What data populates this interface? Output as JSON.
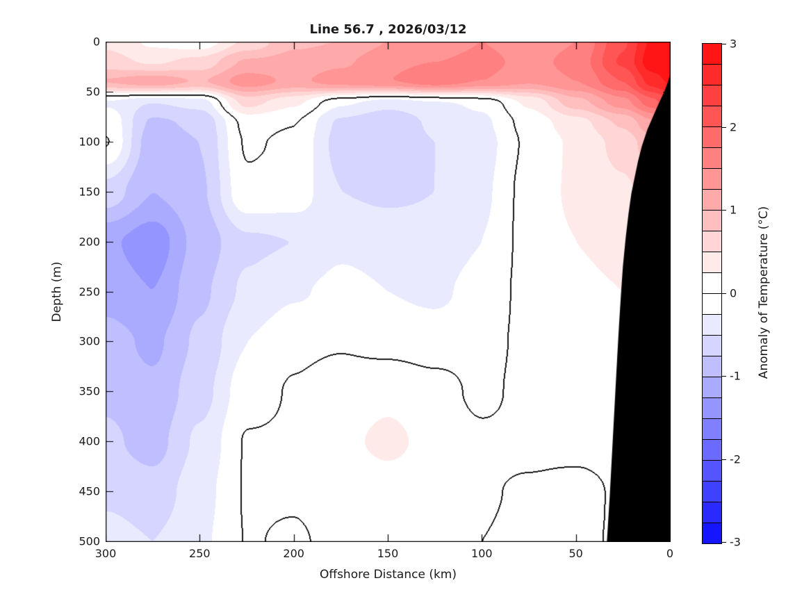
{
  "figure": {
    "title": "Line 56.7 , 2026/03/12",
    "background_color": "#ffffff"
  },
  "axes": {
    "xlabel": "Offshore Distance (km)",
    "ylabel": "Depth (m)",
    "x_ticks": [
      300,
      250,
      200,
      150,
      100,
      50,
      0
    ],
    "y_ticks": [
      0,
      50,
      100,
      150,
      200,
      250,
      300,
      350,
      400,
      450,
      500
    ],
    "x_range": [
      300,
      0
    ],
    "y_range": [
      0,
      500
    ],
    "x_axis_reversed": true,
    "box_on": true,
    "tick_direction": "in",
    "axis_color": "#000000"
  },
  "colorbar": {
    "label": "Anomaly of Temperature (°C)",
    "tick_values": [
      3,
      2,
      1,
      0,
      -1,
      -2,
      -3
    ],
    "tick_labels": [
      "3",
      "2",
      "1",
      "0",
      "-1",
      "-2",
      "-3"
    ],
    "min": -3,
    "max": 3,
    "segment_step": 0.25,
    "num_segments": 24,
    "positive_end_color": "#ff0000",
    "negative_end_color": "#0000ff",
    "zero_color": "#ffffff",
    "edge_color": "#000000"
  },
  "chart_data": {
    "type": "filled_contour",
    "title": "Line 56.7 , 2026/03/12",
    "xlabel": "Offshore Distance (km)",
    "ylabel": "Depth (m)",
    "zlabel": "Anomaly of Temperature (°C)",
    "contour_interval": 0.25,
    "zlim": [
      -3,
      3
    ],
    "zero_contour_color": "#000000",
    "colormap": "blue-white-red",
    "x_km": [
      300,
      275,
      250,
      225,
      200,
      175,
      150,
      125,
      100,
      75,
      50,
      25,
      10,
      0
    ],
    "depth_m": [
      0,
      20,
      40,
      60,
      80,
      100,
      150,
      200,
      250,
      300,
      350,
      400,
      450,
      500
    ],
    "anomaly_grid": [
      [
        0.45,
        0.2,
        0.08,
        0.55,
        0.95,
        1.0,
        1.25,
        1.3,
        1.5,
        1.3,
        1.5,
        2.2,
        2.8,
        3.0
      ],
      [
        0.6,
        0.45,
        0.6,
        1.05,
        1.1,
        1.2,
        1.45,
        1.5,
        1.6,
        1.4,
        1.6,
        2.3,
        2.9,
        3.0
      ],
      [
        1.05,
        1.2,
        1.0,
        1.4,
        1.2,
        1.4,
        1.5,
        1.7,
        1.5,
        1.3,
        1.5,
        2.0,
        2.6,
        2.8
      ],
      [
        -0.3,
        -0.5,
        -0.4,
        0.6,
        0.3,
        -0.2,
        -0.4,
        -0.3,
        -0.2,
        0.3,
        0.9,
        1.4,
        1.9,
        2.2
      ],
      [
        -0.05,
        -0.8,
        -0.7,
        0.08,
        0.01,
        -0.55,
        -0.7,
        -0.45,
        -0.3,
        0.1,
        0.4,
        0.8,
        1.2,
        1.5
      ],
      [
        0.02,
        -0.9,
        -0.75,
        0.03,
        -0.05,
        -0.6,
        -0.7,
        -0.5,
        -0.35,
        0.05,
        0.3,
        0.6,
        0.9,
        1.1
      ],
      [
        -0.6,
        -1.0,
        -0.8,
        -0.05,
        -0.1,
        -0.5,
        -0.55,
        -0.5,
        -0.3,
        0.1,
        0.3,
        0.45,
        0.6,
        0.7
      ],
      [
        -1.2,
        -1.4,
        -0.9,
        -0.55,
        -0.5,
        -0.3,
        -0.35,
        -0.4,
        -0.25,
        0.1,
        0.25,
        0.35,
        0.45,
        0.5
      ],
      [
        -1.1,
        -1.25,
        -0.8,
        -0.45,
        -0.28,
        -0.18,
        -0.25,
        -0.3,
        -0.15,
        0.08,
        0.18,
        0.25,
        0.3,
        0.35
      ],
      [
        -0.9,
        -1.05,
        -0.7,
        -0.25,
        -0.05,
        -0.02,
        -0.08,
        -0.12,
        -0.08,
        0.06,
        0.15,
        0.2,
        0.25,
        0.3
      ],
      [
        -0.8,
        -0.95,
        -0.6,
        -0.1,
        0.02,
        0.12,
        0.2,
        0.1,
        -0.06,
        0.08,
        0.12,
        0.15,
        0.18,
        0.2
      ],
      [
        -0.7,
        -0.85,
        -0.45,
        0.02,
        0.03,
        0.2,
        0.3,
        0.18,
        0.05,
        0.06,
        0.08,
        0.1,
        0.12,
        0.15
      ],
      [
        -0.55,
        -0.65,
        -0.35,
        0.02,
        0.02,
        0.1,
        0.15,
        0.1,
        0.02,
        -0.03,
        -0.08,
        0.04,
        0.06,
        0.08
      ],
      [
        -0.4,
        -0.5,
        -0.3,
        0.01,
        -0.02,
        0.05,
        0.1,
        0.05,
        0.0,
        -0.05,
        -0.03,
        0.02,
        0.03,
        0.04
      ]
    ],
    "bathymetry_mask": {
      "color": "#000000",
      "side": "right",
      "profile_km_depth": [
        [
          0,
          33
        ],
        [
          1,
          40
        ],
        [
          3,
          50
        ],
        [
          6,
          62
        ],
        [
          9,
          75
        ],
        [
          12,
          88
        ],
        [
          15,
          105
        ],
        [
          17,
          120
        ],
        [
          19,
          138
        ],
        [
          20.5,
          152
        ],
        [
          22,
          172
        ],
        [
          23.5,
          196
        ],
        [
          25,
          225
        ],
        [
          26,
          252
        ],
        [
          27,
          282
        ],
        [
          28,
          315
        ],
        [
          29,
          350
        ],
        [
          30,
          385
        ],
        [
          31,
          420
        ],
        [
          32,
          455
        ],
        [
          33,
          485
        ],
        [
          33.5,
          500
        ]
      ]
    }
  }
}
